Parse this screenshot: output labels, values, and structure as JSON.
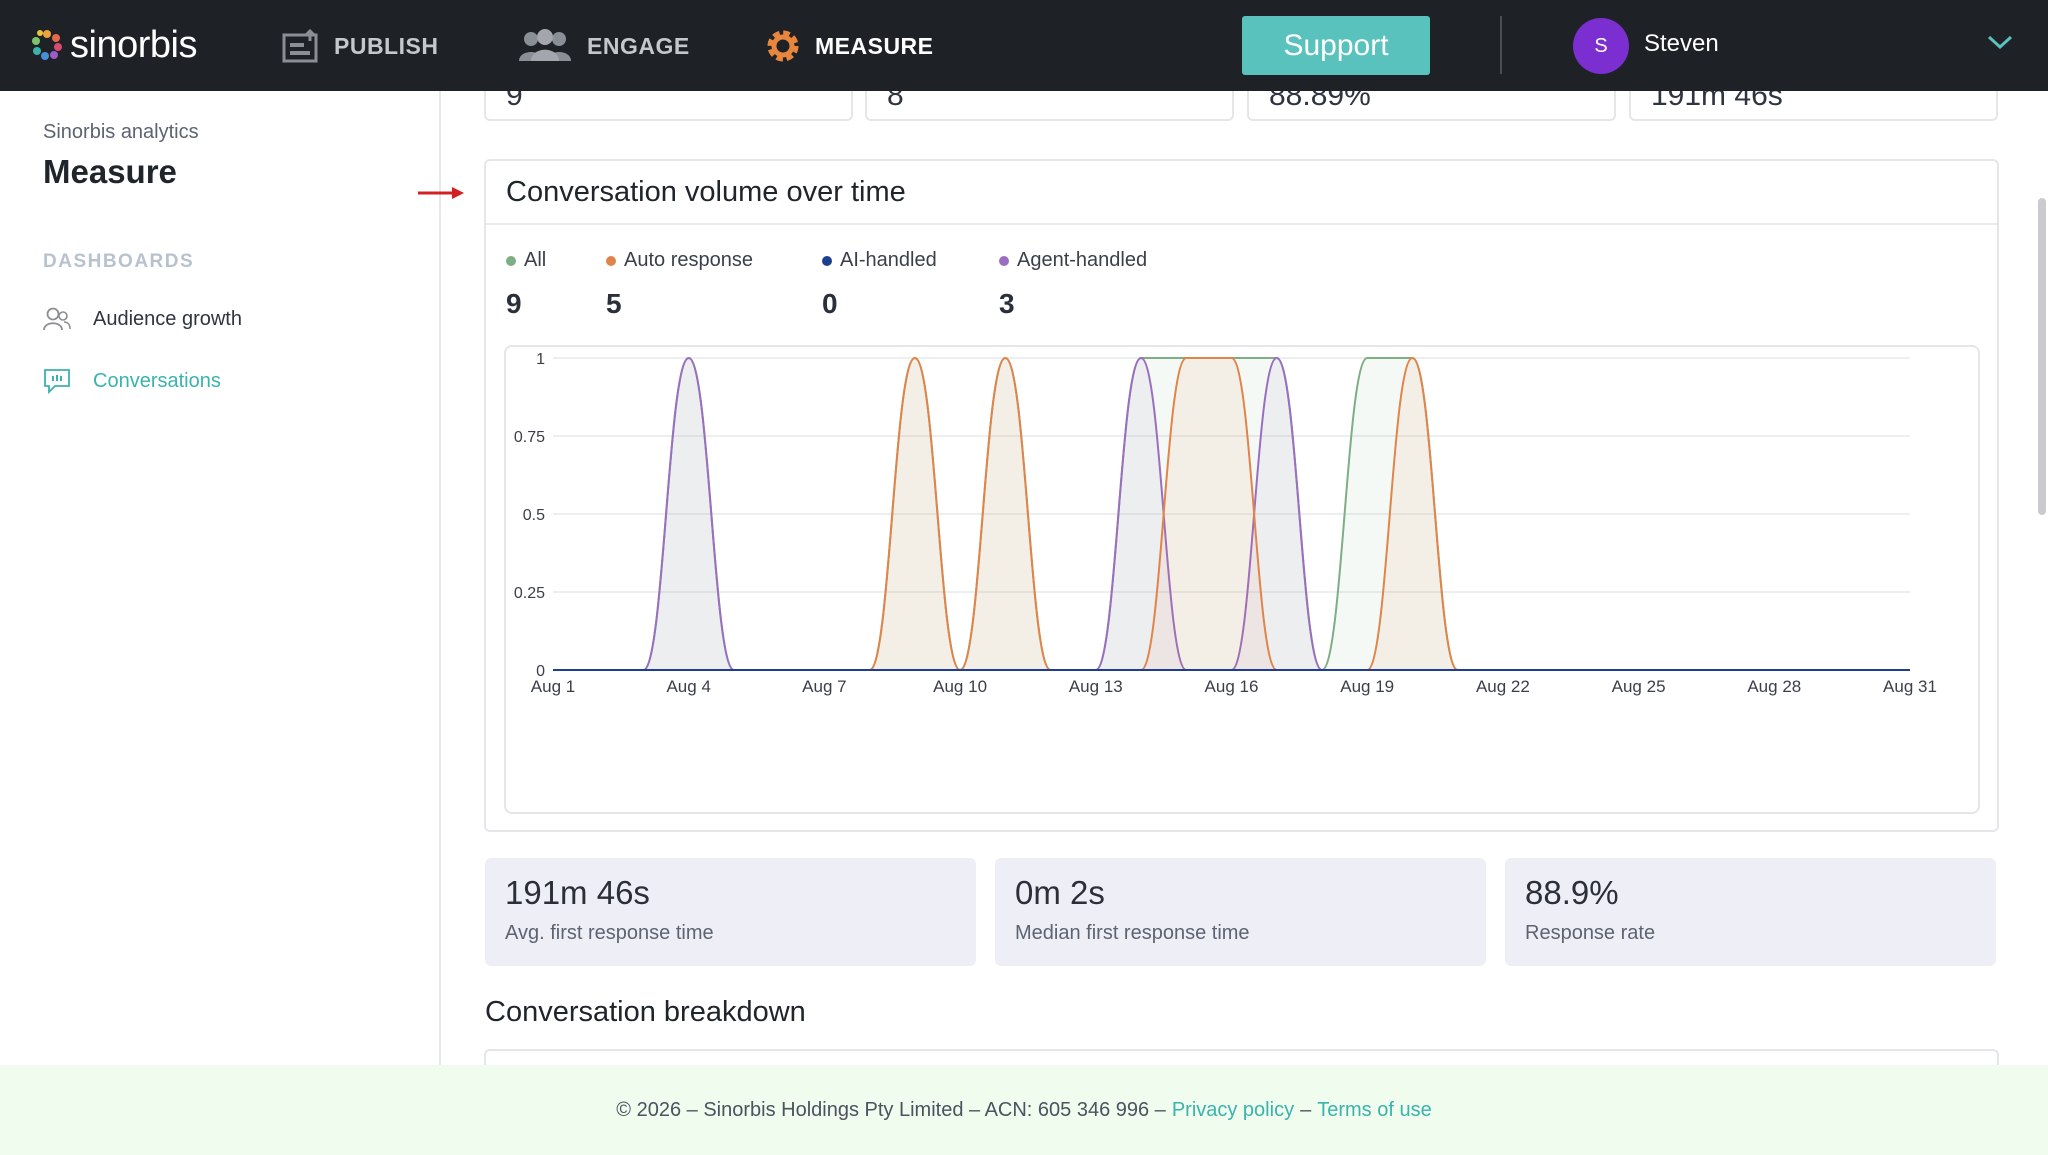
{
  "brand": {
    "name": "sinorbis"
  },
  "nav": {
    "items": [
      {
        "label": "PUBLISH"
      },
      {
        "label": "ENGAGE"
      },
      {
        "label": "MEASURE"
      }
    ],
    "support_label": "Support",
    "user": {
      "initial": "S",
      "name": "Steven"
    }
  },
  "sidebar": {
    "subtitle": "Sinorbis analytics",
    "title": "Measure",
    "section": "DASHBOARDS",
    "items": [
      {
        "label": "Audience growth",
        "icon": "users-icon",
        "active": false
      },
      {
        "label": "Conversations",
        "icon": "chat-icon",
        "active": true
      }
    ]
  },
  "top_kpis": [
    "9",
    "8",
    "88.89%",
    "191m 46s"
  ],
  "chart_card": {
    "title": "Conversation volume over time",
    "legend": [
      {
        "name": "All",
        "value": "9",
        "color": "#7fae85"
      },
      {
        "name": "Auto response",
        "value": "5",
        "color": "#e0854a"
      },
      {
        "name": "AI-handled",
        "value": "0",
        "color": "#1e3f8f"
      },
      {
        "name": "Agent-handled",
        "value": "3",
        "color": "#9a6fbf"
      }
    ]
  },
  "chart_data": {
    "type": "area",
    "x_ticks": [
      "Aug 1",
      "Aug 4",
      "Aug 7",
      "Aug 10",
      "Aug 13",
      "Aug 16",
      "Aug 19",
      "Aug 22",
      "Aug 25",
      "Aug 28",
      "Aug 31"
    ],
    "y_ticks": [
      "0",
      "0.25",
      "0.5",
      "0.75",
      "1"
    ],
    "ylim": [
      0,
      1
    ],
    "xlim": [
      1,
      31
    ],
    "x": [
      1,
      2,
      3,
      4,
      5,
      6,
      7,
      8,
      9,
      10,
      11,
      12,
      13,
      14,
      15,
      16,
      17,
      18,
      19,
      20,
      21,
      22,
      23,
      24,
      25,
      26,
      27,
      28,
      29,
      30,
      31
    ],
    "series": [
      {
        "name": "All",
        "color": "#7fae85",
        "values": [
          0,
          0,
          0,
          1,
          0,
          0,
          0,
          0,
          1,
          0,
          1,
          0,
          0,
          1,
          1,
          1,
          1,
          0,
          1,
          1,
          0,
          0,
          0,
          0,
          0,
          0,
          0,
          0,
          0,
          0,
          0
        ]
      },
      {
        "name": "Auto response",
        "color": "#e0854a",
        "values": [
          0,
          0,
          0,
          0,
          0,
          0,
          0,
          0,
          1,
          0,
          1,
          0,
          0,
          0,
          1,
          1,
          0,
          0,
          0,
          1,
          0,
          0,
          0,
          0,
          0,
          0,
          0,
          0,
          0,
          0,
          0
        ]
      },
      {
        "name": "AI-handled",
        "color": "#1e3f8f",
        "values": [
          0,
          0,
          0,
          0,
          0,
          0,
          0,
          0,
          0,
          0,
          0,
          0,
          0,
          0,
          0,
          0,
          0,
          0,
          0,
          0,
          0,
          0,
          0,
          0,
          0,
          0,
          0,
          0,
          0,
          0,
          0
        ]
      },
      {
        "name": "Agent-handled",
        "color": "#9a6fbf",
        "values": [
          0,
          0,
          0,
          1,
          0,
          0,
          0,
          0,
          0,
          0,
          0,
          0,
          0,
          1,
          0,
          0,
          1,
          0,
          0,
          0,
          0,
          0,
          0,
          0,
          0,
          0,
          0,
          0,
          0,
          0,
          0
        ]
      }
    ],
    "grid": true
  },
  "stats": [
    {
      "value": "191m 46s",
      "label": "Avg. first response time"
    },
    {
      "value": "0m 2s",
      "label": "Median first response time"
    },
    {
      "value": "88.9%",
      "label": "Response rate"
    }
  ],
  "breakdown_title": "Conversation breakdown",
  "footer": {
    "text": "© 2026 – Sinorbis Holdings Pty Limited – ACN: 605 346 996 –",
    "privacy": "Privacy policy",
    "sep": "–",
    "terms": "Terms of use"
  }
}
